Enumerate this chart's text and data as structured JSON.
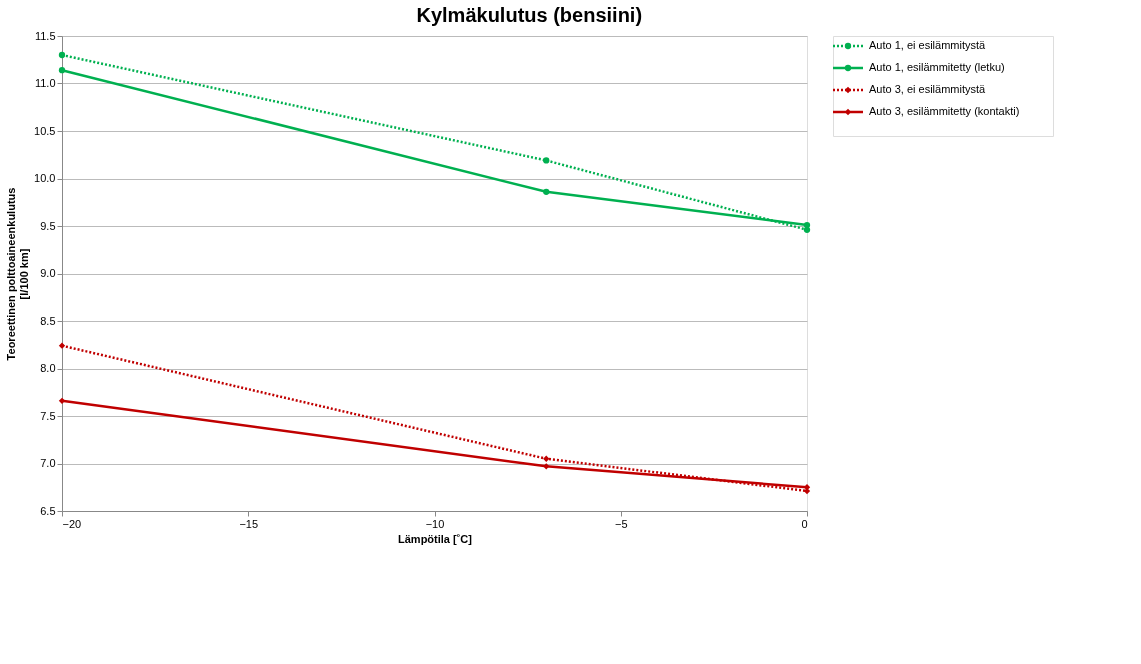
{
  "chart_data": {
    "type": "line",
    "title": "Kylmäkulutus (bensiini)",
    "xlabel": "Lämpötila [˚C]",
    "ylabel": "Teoreettinen polttoaineenkulutus\n[l/100 km]",
    "x": [
      -20,
      -7,
      0
    ],
    "series": [
      {
        "name": "Auto 1, ei esilämmitystä",
        "color": "#00b050",
        "values": [
          11.3,
          10.19,
          9.46
        ],
        "line_style": "dotted",
        "marker": "circle"
      },
      {
        "name": "Auto 1, esilämmitetty (letku)",
        "color": "#00b050",
        "values": [
          11.14,
          9.86,
          9.51
        ],
        "line_style": "solid",
        "marker": "circle"
      },
      {
        "name": "Auto 3, ei esilämmitystä",
        "color": "#c00000",
        "values": [
          8.24,
          7.05,
          6.71
        ],
        "line_style": "dotted",
        "marker": "diamond"
      },
      {
        "name": "Auto 3, esilämmitetty (kontakti)",
        "color": "#c00000",
        "values": [
          7.66,
          6.97,
          6.75
        ],
        "line_style": "solid",
        "marker": "diamond"
      }
    ],
    "xlim": [
      -20,
      0
    ],
    "xticks": [
      -20,
      -15,
      -10,
      -5,
      0
    ],
    "ylim": [
      6.5,
      11.5
    ],
    "yticks": [
      {
        "value": 6.5,
        "label": "6.5"
      },
      {
        "value": 7.0,
        "label": "7.0"
      },
      {
        "value": 7.5,
        "label": "7.5"
      },
      {
        "value": 8.0,
        "label": "8.0"
      },
      {
        "value": 8.5,
        "label": "8.5"
      },
      {
        "value": 9.0,
        "label": "9.0"
      },
      {
        "value": 9.5,
        "label": "9.5"
      },
      {
        "value": 10.0,
        "label": "10.0"
      },
      {
        "value": 10.5,
        "label": "10.5"
      },
      {
        "value": 11.0,
        "label": "11.0"
      },
      {
        "value": 11.5,
        "label": "11.5"
      }
    ],
    "grid": "y",
    "legend": "right"
  }
}
